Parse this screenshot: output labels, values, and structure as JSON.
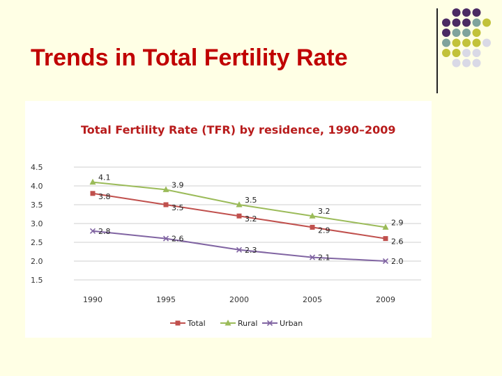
{
  "slide": {
    "title": "Trends in Total Fertility Rate"
  },
  "decoration": {
    "dot_colors": {
      "purple": "#4B2A63",
      "teal": "#7FA39C",
      "olive": "#C2C23A",
      "light": "#D9D9E6"
    },
    "dot_grid": [
      [
        null,
        "purple",
        "purple",
        "purple",
        null
      ],
      [
        "purple",
        "purple",
        "purple",
        "teal",
        "olive"
      ],
      [
        "purple",
        "teal",
        "teal",
        "olive",
        null
      ],
      [
        "teal",
        "olive",
        "olive",
        "olive",
        "light"
      ],
      [
        "olive",
        "olive",
        "light",
        "light",
        null
      ],
      [
        null,
        "light",
        "light",
        "light",
        null
      ]
    ]
  },
  "chart_data": {
    "type": "line",
    "title": "Total Fertility Rate (TFR) by residence, 1990–2009",
    "categories": [
      "1990",
      "1995",
      "2000",
      "2005",
      "2009"
    ],
    "ylim": [
      1.5,
      4.5
    ],
    "y_ticks": [
      "4.5",
      "4.0",
      "3.5",
      "3.0",
      "2.5",
      "2.0",
      "1.5"
    ],
    "grid": true,
    "legend_position": "bottom",
    "series": [
      {
        "name": "Total",
        "color": "#C0504D",
        "marker": "square",
        "values": [
          3.8,
          3.5,
          3.2,
          2.9,
          2.6
        ],
        "labels": [
          "3.8",
          "3.5",
          "3.2",
          "2.9",
          "2.6"
        ]
      },
      {
        "name": "Rural",
        "color": "#9BBB59",
        "marker": "triangle",
        "values": [
          4.1,
          3.9,
          3.5,
          3.2,
          2.9
        ],
        "labels": [
          "4.1",
          "3.9",
          "3.5",
          "3.2",
          "2.9"
        ]
      },
      {
        "name": "Urban",
        "color": "#8064A2",
        "marker": "x",
        "values": [
          2.8,
          2.6,
          2.3,
          2.1,
          2.0
        ],
        "labels": [
          "2.8",
          "2.6",
          "2.3",
          "2.1",
          "2.0"
        ]
      }
    ]
  }
}
